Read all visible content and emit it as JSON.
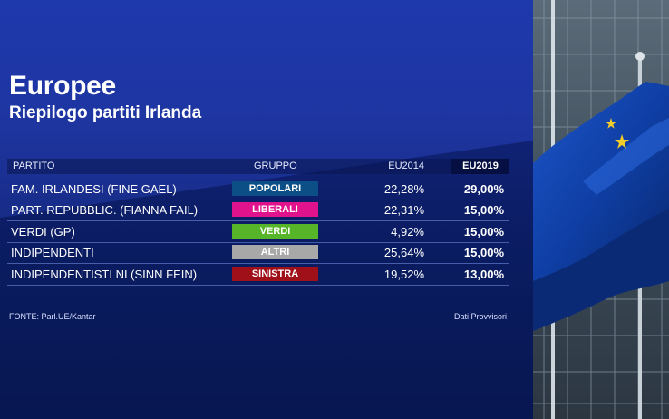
{
  "title": "Europee",
  "subtitle": "Riepilogo partiti Irlanda",
  "table": {
    "headers": {
      "partito": "PARTITO",
      "gruppo": "GRUPPO",
      "eu2014": "EU2014",
      "eu2019": "EU2019"
    },
    "rows": [
      {
        "partito": "FAM. IRLANDESI (FINE GAEL)",
        "gruppo": "POPOLARI",
        "gruppo_color": "#0b4f86",
        "eu2014": "22,28%",
        "eu2019": "29,00%"
      },
      {
        "partito": "PART. REPUBBLIC. (FIANNA FAIL)",
        "gruppo": "LIBERALI",
        "gruppo_color": "#e0138c",
        "eu2014": "22,31%",
        "eu2019": "15,00%"
      },
      {
        "partito": "VERDI (GP)",
        "gruppo": "VERDI",
        "gruppo_color": "#57b52a",
        "eu2014": "4,92%",
        "eu2019": "15,00%"
      },
      {
        "partito": "INDIPENDENTI",
        "gruppo": "ALTRI",
        "gruppo_color": "#a8a8a8",
        "eu2014": "25,64%",
        "eu2019": "15,00%"
      },
      {
        "partito": "INDIPENDENTISTI NI (SINN FEIN)",
        "gruppo": "SINISTRA",
        "gruppo_color": "#a01018",
        "eu2014": "19,52%",
        "eu2019": "13,00%"
      }
    ]
  },
  "footer": {
    "source": "FONTE: Parl.UE/Kantar",
    "note": "Dati Provvisori"
  }
}
